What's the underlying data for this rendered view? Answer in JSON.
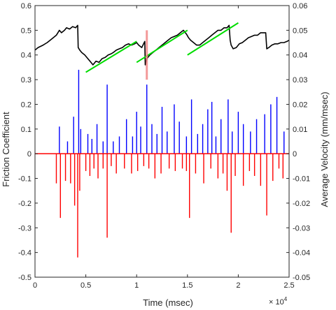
{
  "chart_data": {
    "type": "line",
    "xlabel": "Time (msec)",
    "x_exponent_label": "× 10",
    "x_exponent_power": "4",
    "ylabel_left": "Friction Coefficient",
    "ylabel_right": "Average Velocity (mm/msec)",
    "x_scale": 10000,
    "xlim": [
      0,
      25000
    ],
    "ylim_left": [
      -0.5,
      0.6
    ],
    "ylim_right": [
      -0.05,
      0.06
    ],
    "x_ticks": [
      0,
      5000,
      10000,
      15000,
      20000,
      25000
    ],
    "x_tick_labels": [
      "0",
      "0.5",
      "1",
      "1.5",
      "2",
      "2.5"
    ],
    "y_left_ticks": [
      -0.5,
      -0.4,
      -0.3,
      -0.2,
      -0.1,
      0,
      0.1,
      0.2,
      0.3,
      0.4,
      0.5,
      0.6
    ],
    "y_left_tick_labels": [
      "-0.5",
      "-0.4",
      "-0.3",
      "-0.2",
      "-0.1",
      "0",
      "0.1",
      "0.2",
      "0.3",
      "0.4",
      "0.5",
      "0.6"
    ],
    "y_right_ticks": [
      -0.05,
      -0.04,
      -0.03,
      -0.02,
      -0.01,
      0,
      0.01,
      0.02,
      0.03,
      0.04,
      0.05,
      0.06
    ],
    "y_right_tick_labels": [
      "-0.05",
      "-0.04",
      "-0.03",
      "-0.02",
      "-0.01",
      "0",
      "0.01",
      "0.02",
      "0.03",
      "0.04",
      "0.05",
      "0.06"
    ],
    "grid": false,
    "colors": {
      "friction": "#000000",
      "trend": "#00dd00",
      "positive_velocity": "#0000ff",
      "negative_velocity": "#ff0000",
      "marker": "#f08080"
    },
    "friction_series": {
      "x": [
        0,
        300,
        800,
        1200,
        1500,
        1800,
        2100,
        2400,
        2600,
        2900,
        3100,
        3400,
        3700,
        4000,
        4200,
        4250,
        4400,
        4600,
        4900,
        5200,
        5500,
        5700,
        6000,
        6300,
        6600,
        6900,
        7200,
        7500,
        7700,
        8000,
        8300,
        8600,
        8900,
        9200,
        9500,
        9800,
        10000,
        10200,
        10500,
        10800,
        10850,
        11000,
        11300,
        11600,
        11900,
        12200,
        12500,
        12800,
        13100,
        13400,
        13700,
        14000,
        14300,
        14600,
        14900,
        15100,
        15300,
        15600,
        15900,
        16200,
        16500,
        16800,
        17100,
        17400,
        17700,
        18000,
        18300,
        18600,
        18900,
        19100,
        19200,
        19300,
        19500,
        19800,
        20100,
        20400,
        20700,
        21000,
        21300,
        21600,
        21900,
        22200,
        22500,
        22700,
        22800,
        23000,
        23300,
        23600,
        23900,
        24200,
        24500,
        24800,
        25000
      ],
      "y": [
        0.42,
        0.43,
        0.44,
        0.45,
        0.46,
        0.47,
        0.48,
        0.5,
        0.49,
        0.5,
        0.51,
        0.505,
        0.515,
        0.51,
        0.52,
        0.43,
        0.42,
        0.41,
        0.4,
        0.385,
        0.37,
        0.36,
        0.375,
        0.37,
        0.385,
        0.39,
        0.4,
        0.405,
        0.41,
        0.42,
        0.425,
        0.43,
        0.44,
        0.445,
        0.44,
        0.445,
        0.45,
        0.44,
        0.43,
        0.455,
        0.36,
        0.385,
        0.4,
        0.41,
        0.42,
        0.43,
        0.44,
        0.45,
        0.46,
        0.47,
        0.475,
        0.48,
        0.49,
        0.5,
        0.485,
        0.47,
        0.46,
        0.45,
        0.44,
        0.44,
        0.45,
        0.46,
        0.47,
        0.48,
        0.49,
        0.5,
        0.5,
        0.51,
        0.51,
        0.52,
        0.46,
        0.44,
        0.425,
        0.43,
        0.445,
        0.45,
        0.46,
        0.47,
        0.475,
        0.48,
        0.48,
        0.49,
        0.49,
        0.49,
        0.425,
        0.43,
        0.44,
        0.445,
        0.445,
        0.45,
        0.45,
        0.455,
        0.46
      ]
    },
    "trend_lines": [
      {
        "x": [
          5000,
          10000
        ],
        "y": [
          0.33,
          0.455
        ]
      },
      {
        "x": [
          10000,
          15000
        ],
        "y": [
          0.37,
          0.5
        ]
      },
      {
        "x": [
          15000,
          20000
        ],
        "y": [
          0.4,
          0.53
        ]
      }
    ],
    "marker_span": {
      "x": 11000,
      "y": [
        0.3,
        0.5
      ]
    },
    "velocity_positive_spikes": {
      "x": [
        2400,
        3200,
        3800,
        4300,
        4500,
        5200,
        5600,
        6100,
        6700,
        7100,
        7700,
        8300,
        9000,
        9600,
        10000,
        10400,
        11000,
        11500,
        12000,
        12500,
        13000,
        13700,
        14200,
        14900,
        15400,
        16000,
        16500,
        17000,
        17400,
        17800,
        18300,
        19000,
        19400,
        20000,
        20500,
        21200,
        21800,
        22600,
        23200,
        23800,
        24500
      ],
      "y": [
        0.011,
        0.005,
        0.015,
        0.034,
        0.01,
        0.008,
        0.006,
        0.012,
        0.005,
        0.028,
        0.005,
        0.007,
        0.014,
        0.007,
        0.017,
        0.011,
        0.028,
        0.012,
        0.008,
        0.019,
        0.009,
        0.02,
        0.013,
        0.007,
        0.022,
        0.008,
        0.012,
        0.018,
        0.021,
        0.007,
        0.014,
        0.022,
        0.009,
        0.017,
        0.012,
        0.009,
        0.014,
        0.016,
        0.02,
        0.023,
        0.009
      ]
    },
    "velocity_negative_spikes": {
      "x": [
        2100,
        2500,
        3000,
        3500,
        3900,
        4200,
        4400,
        5000,
        5400,
        5800,
        6200,
        6700,
        7100,
        7500,
        8000,
        8800,
        9500,
        10100,
        10700,
        11200,
        11800,
        12400,
        13200,
        13800,
        14500,
        14900,
        15200,
        15800,
        16600,
        17300,
        18000,
        18500,
        18900,
        19300,
        19700,
        20500,
        21100,
        21600,
        22200,
        22800,
        23400,
        24000,
        24400
      ],
      "y": [
        -0.012,
        -0.026,
        -0.011,
        -0.012,
        -0.021,
        -0.042,
        -0.015,
        -0.007,
        -0.009,
        -0.006,
        -0.01,
        -0.006,
        -0.034,
        -0.005,
        -0.008,
        -0.006,
        -0.008,
        -0.007,
        -0.005,
        -0.006,
        -0.01,
        -0.008,
        -0.006,
        -0.007,
        -0.006,
        -0.007,
        -0.026,
        -0.008,
        -0.012,
        -0.006,
        -0.01,
        -0.008,
        -0.015,
        -0.032,
        -0.009,
        -0.013,
        -0.007,
        -0.009,
        -0.013,
        -0.025,
        -0.011,
        -0.006,
        -0.01
      ]
    }
  }
}
